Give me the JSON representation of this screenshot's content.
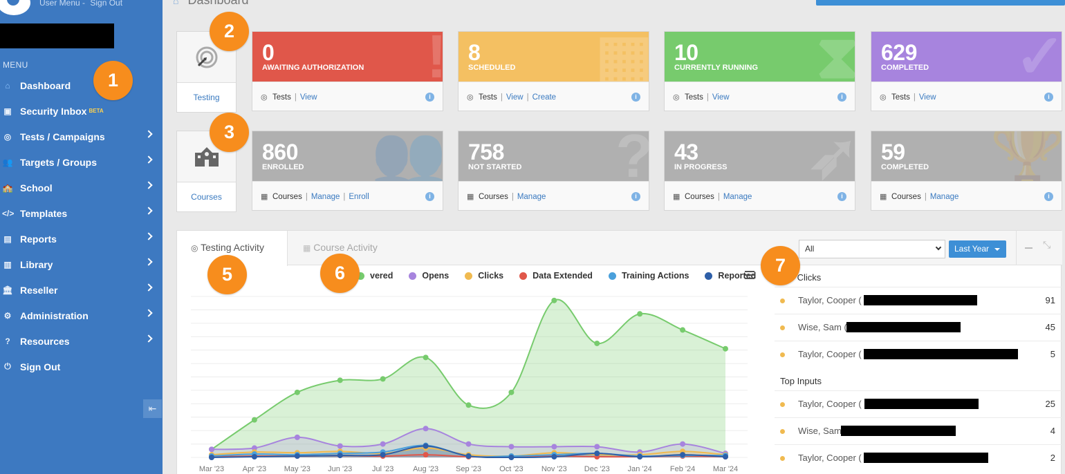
{
  "header": {
    "user_menu": "User Menu -",
    "sign_out": "Sign Out",
    "page_title": "Dashboard"
  },
  "sidebar": {
    "menu_label": "MENU",
    "items": [
      {
        "label": "Dashboard",
        "icon": "home-icon",
        "glyph": "⌂",
        "chevron": false
      },
      {
        "label": "Security Inbox",
        "icon": "inbox-icon",
        "glyph": "▣",
        "chevron": false,
        "badge": "BETA"
      },
      {
        "label": "Tests / Campaigns",
        "icon": "target-icon",
        "glyph": "◎",
        "chevron": true
      },
      {
        "label": "Targets / Groups",
        "icon": "users-icon",
        "glyph": "👥",
        "chevron": true
      },
      {
        "label": "School",
        "icon": "school-icon",
        "glyph": "🏫",
        "chevron": true
      },
      {
        "label": "Templates",
        "icon": "code-icon",
        "glyph": "</>",
        "chevron": true
      },
      {
        "label": "Reports",
        "icon": "chart-icon",
        "glyph": "▤",
        "chevron": true
      },
      {
        "label": "Library",
        "icon": "library-icon",
        "glyph": "▥",
        "chevron": true
      },
      {
        "label": "Reseller",
        "icon": "bank-icon",
        "glyph": "🏛",
        "chevron": true
      },
      {
        "label": "Administration",
        "icon": "gears-icon",
        "glyph": "⚙",
        "chevron": true
      },
      {
        "label": "Resources",
        "icon": "help-icon",
        "glyph": "?",
        "chevron": true
      },
      {
        "label": "Sign Out",
        "icon": "power-icon",
        "glyph": "⏻",
        "chevron": false
      }
    ]
  },
  "testing_tile": {
    "label": "Testing"
  },
  "courses_tile": {
    "label": "Courses"
  },
  "testing_cards": [
    {
      "value": "0",
      "caption": "AWAITING AUTHORIZATION",
      "foot_prefix": "Tests",
      "links": [
        "View"
      ],
      "color": "#e0574a"
    },
    {
      "value": "8",
      "caption": "SCHEDULED",
      "foot_prefix": "Tests",
      "links": [
        "View",
        "Create"
      ],
      "color": "#f4c062"
    },
    {
      "value": "10",
      "caption": "CURRENTLY RUNNING",
      "foot_prefix": "Tests",
      "links": [
        "View"
      ],
      "color": "#77cb6d"
    },
    {
      "value": "629",
      "caption": "COMPLETED",
      "foot_prefix": "Tests",
      "links": [
        "View"
      ],
      "color": "#a784de"
    }
  ],
  "course_cards": [
    {
      "value": "860",
      "caption": "ENROLLED",
      "foot_prefix": "Courses",
      "links": [
        "Manage",
        "Enroll"
      ]
    },
    {
      "value": "758",
      "caption": "NOT STARTED",
      "foot_prefix": "Courses",
      "links": [
        "Manage"
      ]
    },
    {
      "value": "43",
      "caption": "IN PROGRESS",
      "foot_prefix": "Courses",
      "links": [
        "Manage"
      ]
    },
    {
      "value": "59",
      "caption": "COMPLETED",
      "foot_prefix": "Courses",
      "links": [
        "Manage"
      ]
    }
  ],
  "activity": {
    "tabs": [
      "Testing Activity",
      "Course Activity"
    ],
    "filter_value": "All",
    "period": "Last Year",
    "legend": [
      {
        "label": "vered",
        "color": "#77cb6d"
      },
      {
        "label": "Opens",
        "color": "#a784de"
      },
      {
        "label": "Clicks",
        "color": "#f0ba50"
      },
      {
        "label": "Data Extended",
        "color": "#e0574a"
      },
      {
        "label": "Training Actions",
        "color": "#4aa0db"
      },
      {
        "label": "Reported",
        "color": "#2e5fa8"
      }
    ]
  },
  "chart_data": {
    "type": "area",
    "categories": [
      "Mar '23",
      "Apr '23",
      "May '23",
      "Jun '23",
      "Jul '23",
      "Aug '23",
      "Sep '23",
      "Oct '23",
      "Nov '23",
      "Dec '23",
      "Jan '24",
      "Feb '24",
      "Mar '24"
    ],
    "ylim": [
      0,
      240
    ],
    "series": [
      {
        "name": "Delivered",
        "color": "#77cb6d",
        "values": [
          12,
          56,
          97,
          115,
          117,
          149,
          78,
          97,
          234,
          170,
          214,
          190,
          162
        ]
      },
      {
        "name": "Opens",
        "color": "#a784de",
        "values": [
          12,
          14,
          30,
          17,
          20,
          43,
          20,
          16,
          16,
          16,
          8,
          20,
          6
        ]
      },
      {
        "name": "Clicks",
        "color": "#f0ba50",
        "values": [
          4,
          8,
          7,
          9,
          6,
          14,
          4,
          2,
          7,
          4,
          4,
          9,
          4
        ]
      },
      {
        "name": "Data Extended",
        "color": "#e0574a",
        "values": [
          1,
          2,
          2,
          3,
          2,
          4,
          1,
          1,
          2,
          1,
          1,
          2,
          1
        ]
      },
      {
        "name": "Training Actions",
        "color": "#4aa0db",
        "values": [
          2,
          5,
          4,
          6,
          8,
          18,
          2,
          2,
          4,
          6,
          2,
          3,
          3
        ]
      },
      {
        "name": "Reported",
        "color": "#2e5fa8",
        "values": [
          0,
          1,
          2,
          3,
          4,
          17,
          2,
          0,
          1,
          6,
          1,
          4,
          1
        ]
      }
    ]
  },
  "top_lists": {
    "clicks_title": "Top Clicks",
    "clicks": [
      {
        "name": "Taylor, Cooper (",
        "count": "91"
      },
      {
        "name": "Wise, Sam (",
        "count": "45"
      },
      {
        "name": "Taylor, Cooper (",
        "count": "5"
      }
    ],
    "inputs_title": "Top Inputs",
    "inputs": [
      {
        "name": "Taylor, Cooper (",
        "count": "25"
      },
      {
        "name": "Wise, Sam",
        "count": "4"
      },
      {
        "name": "Taylor, Cooper (",
        "count": "2"
      }
    ]
  },
  "callouts": [
    "1",
    "2",
    "3",
    "5",
    "6",
    "7"
  ]
}
